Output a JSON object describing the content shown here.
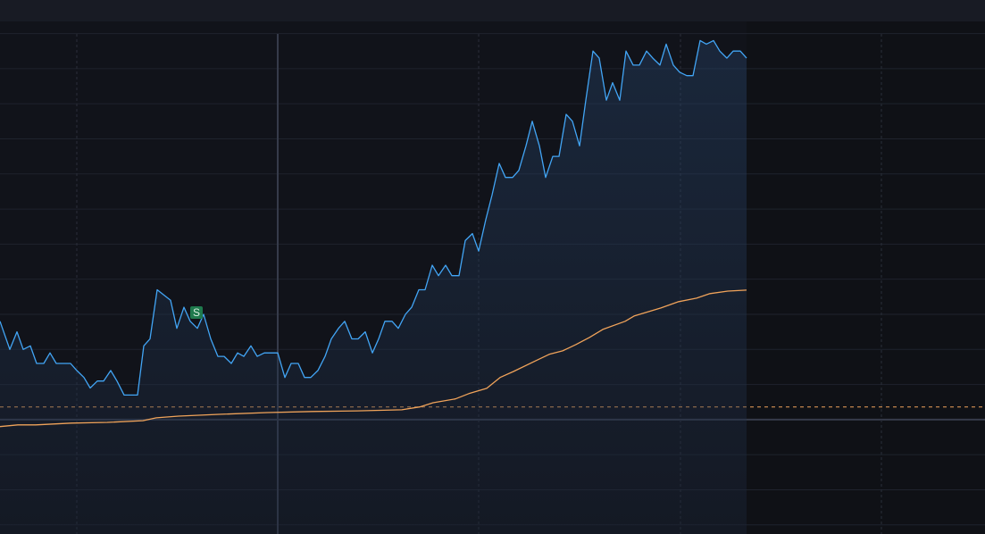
{
  "chart_data": {
    "type": "line",
    "xlim": [
      0,
      1103
    ],
    "xticks": [
      86,
      311,
      536,
      762,
      987
    ],
    "x_major": 311,
    "ylim": [
      -32.6,
      113.2
    ],
    "yticks": [
      -30,
      -20,
      -10,
      0,
      10,
      20,
      30,
      40,
      50,
      60,
      70,
      80,
      90,
      100,
      110
    ],
    "y_major": 0,
    "grid": true,
    "area": true,
    "reference_line": {
      "value": 3.6,
      "color": "#f0a35a"
    },
    "series": [
      {
        "color": "#42a5f5",
        "x": [
          0,
          11,
          19,
          26,
          34,
          41,
          49,
          56,
          63,
          79,
          86,
          94,
          101,
          109,
          116,
          124,
          131,
          139,
          154,
          161,
          168,
          176,
          191,
          198,
          206,
          213,
          221,
          228,
          236,
          244,
          251,
          259,
          266,
          273,
          281,
          288,
          296,
          311,
          319,
          326,
          334,
          341,
          348,
          356,
          364,
          371,
          379,
          386,
          394,
          401,
          409,
          417,
          424,
          431,
          439,
          446,
          454,
          461,
          469,
          476,
          484,
          491,
          499,
          506,
          514,
          521,
          529,
          536,
          544,
          551,
          559,
          566,
          574,
          581,
          589,
          596,
          604,
          611,
          619,
          626,
          634,
          641,
          649,
          656,
          664,
          671,
          679,
          686,
          694,
          701,
          709,
          716,
          724,
          731,
          739,
          746,
          754,
          761,
          769,
          776,
          784,
          791,
          799,
          806,
          814,
          821,
          829,
          836
        ],
        "values": [
          28,
          20,
          25,
          20,
          21,
          16,
          16,
          19,
          16,
          16,
          14,
          12,
          9,
          11,
          11,
          14,
          11,
          7,
          7,
          21,
          23,
          37,
          34,
          26,
          32,
          28,
          26,
          30,
          23,
          18,
          18,
          16,
          19,
          18,
          21,
          18,
          19,
          19,
          12,
          16,
          16,
          12,
          12,
          14,
          18,
          23,
          26,
          28,
          23,
          23,
          25,
          19,
          23,
          28,
          28,
          26,
          30,
          32,
          37,
          37,
          44,
          41,
          44,
          41,
          41,
          51,
          53,
          48,
          57,
          64,
          73,
          69,
          69,
          71,
          78,
          85,
          78,
          69,
          75,
          75,
          87,
          85,
          78,
          91,
          105,
          103,
          91,
          96,
          91,
          105,
          101,
          101,
          105,
          103,
          101,
          107,
          101,
          99,
          98,
          98,
          108,
          107,
          108,
          105,
          103,
          105,
          105,
          103
        ]
      },
      {
        "color": "#f0a35a",
        "x": [
          0,
          20,
          40,
          80,
          120,
          160,
          175,
          200,
          245,
          300,
          350,
          400,
          450,
          470,
          485,
          510,
          525,
          545,
          560,
          575,
          600,
          615,
          630,
          645,
          660,
          675,
          700,
          710,
          740,
          760,
          780,
          795,
          815,
          836
        ],
        "values": [
          -2,
          -1.5,
          -1.5,
          -1,
          -0.8,
          -0.3,
          0.5,
          1,
          1.5,
          2,
          2.3,
          2.5,
          2.8,
          3.6,
          4.8,
          5.9,
          7.4,
          8.9,
          12,
          13.7,
          16.8,
          18.6,
          19.6,
          21.4,
          23.4,
          25.7,
          28,
          29.5,
          31.8,
          33.6,
          34.6,
          35.9,
          36.6,
          36.9
        ]
      }
    ],
    "markers": [
      {
        "label": "S",
        "x": 220,
        "value": 30.5,
        "color": "#1f7a4d"
      }
    ]
  }
}
